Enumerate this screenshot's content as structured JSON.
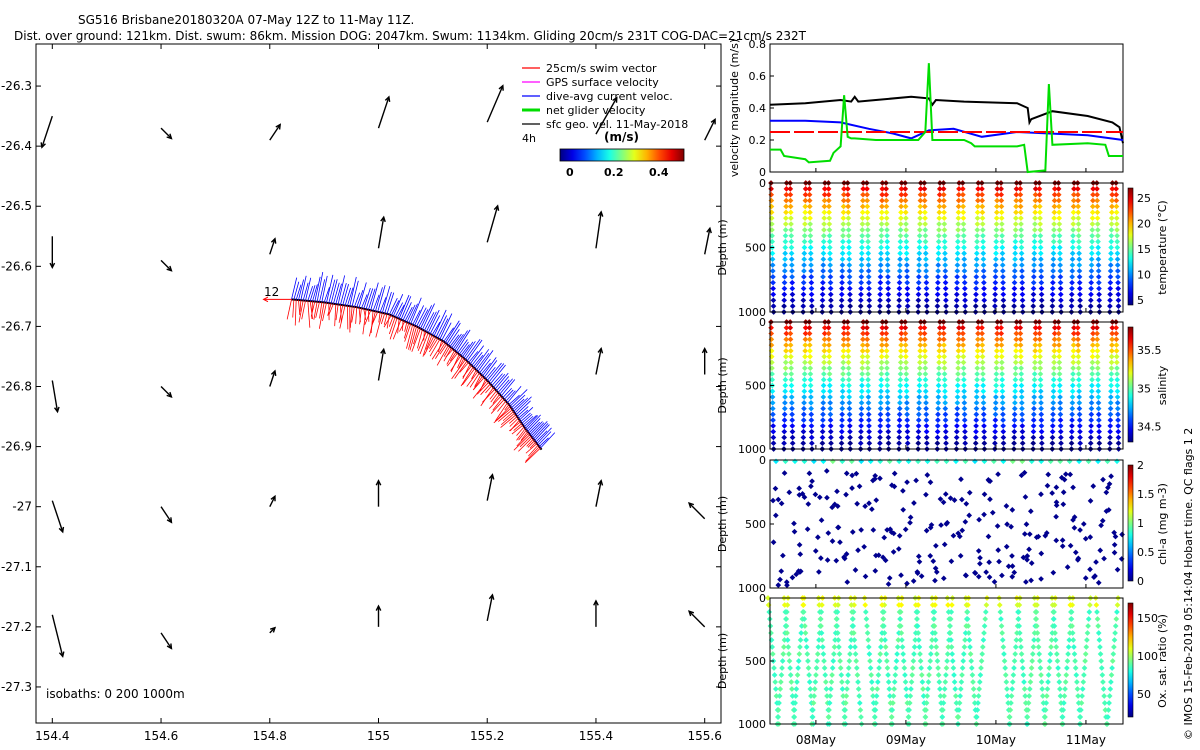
{
  "header": {
    "line1": "SG516 Brisbane20180320A 07-May 12Z to 11-May 11Z.",
    "line2": "Dist. over ground: 121km. Dist. swum: 86km. Mission DOG: 2047km. Swum: 1134km. Gliding 20cm/s 231T COG-DAC=21cm/s 232T"
  },
  "copyright": "© IMOS 15-Feb-2019 05:14:04 Hobart time. QC flags 1  2",
  "chart_data": [
    {
      "type": "scatter",
      "name": "map",
      "xlim": [
        154.37,
        155.63
      ],
      "ylim": [
        -27.36,
        -26.23
      ],
      "xticks": [
        "154.4",
        "154.6",
        "154.8",
        "155",
        "155.2",
        "155.4",
        "155.6"
      ],
      "yticks": [
        "-26.3",
        "-26.4",
        "-26.5",
        "-26.6",
        "-26.7",
        "-26.8",
        "-26.9",
        "-27",
        "-27.1",
        "-27.2",
        "-27.3"
      ],
      "legend": [
        "25cm/s swim vector",
        "GPS surface velocity",
        "dive-avg current veloc.",
        "net glider velocity",
        "sfc geo. vel. 11-May-2018"
      ],
      "legend_extra": "4h",
      "colorbar_title": "(m/s)",
      "colorbar_ticks": [
        "0",
        "0.2",
        "0.4"
      ],
      "isobaths": "isobaths: 0   200  1000m",
      "track_label": "12",
      "track": [
        [
          154.84,
          -26.655
        ],
        [
          154.9,
          -26.66
        ],
        [
          154.96,
          -26.668
        ],
        [
          155.02,
          -26.68
        ],
        [
          155.07,
          -26.7
        ],
        [
          155.12,
          -26.725
        ],
        [
          155.16,
          -26.755
        ],
        [
          155.2,
          -26.79
        ],
        [
          155.24,
          -26.83
        ],
        [
          155.27,
          -26.87
        ],
        [
          155.3,
          -26.905
        ]
      ],
      "geo_vectors": [
        [
          154.4,
          -26.35,
          -0.02,
          -0.06
        ],
        [
          154.6,
          -26.37,
          0.02,
          -0.02
        ],
        [
          154.8,
          -26.39,
          0.02,
          0.03
        ],
        [
          155.0,
          -26.37,
          0.02,
          0.06
        ],
        [
          155.2,
          -26.36,
          0.03,
          0.07
        ],
        [
          155.4,
          -26.38,
          0.04,
          0.07
        ],
        [
          155.6,
          -26.39,
          0.02,
          0.04
        ],
        [
          154.4,
          -26.55,
          0.0,
          -0.06
        ],
        [
          154.6,
          -26.59,
          0.02,
          -0.02
        ],
        [
          154.8,
          -26.58,
          0.01,
          0.03
        ],
        [
          155.0,
          -26.57,
          0.01,
          0.06
        ],
        [
          155.2,
          -26.56,
          0.02,
          0.07
        ],
        [
          155.4,
          -26.57,
          0.01,
          0.07
        ],
        [
          155.6,
          -26.58,
          0.01,
          0.05
        ],
        [
          154.4,
          -26.79,
          0.01,
          -0.06
        ],
        [
          154.6,
          -26.8,
          0.02,
          -0.02
        ],
        [
          154.8,
          -26.8,
          0.01,
          0.03
        ],
        [
          155.0,
          -26.79,
          0.01,
          0.06
        ],
        [
          155.4,
          -26.78,
          0.01,
          0.05
        ],
        [
          155.6,
          -26.78,
          0.0,
          0.05
        ],
        [
          154.4,
          -26.99,
          0.02,
          -0.06
        ],
        [
          154.6,
          -27.0,
          0.02,
          -0.03
        ],
        [
          154.8,
          -27.0,
          0.01,
          0.02
        ],
        [
          155.0,
          -27.0,
          0.0,
          0.05
        ],
        [
          155.2,
          -26.99,
          0.01,
          0.05
        ],
        [
          155.4,
          -27.0,
          0.01,
          0.05
        ],
        [
          155.6,
          -27.02,
          -0.03,
          0.03
        ],
        [
          154.4,
          -27.18,
          0.02,
          -0.08
        ],
        [
          154.6,
          -27.21,
          0.02,
          -0.03
        ],
        [
          154.8,
          -27.21,
          0.01,
          0.01
        ],
        [
          155.0,
          -27.2,
          0.0,
          0.04
        ],
        [
          155.2,
          -27.19,
          0.01,
          0.05
        ],
        [
          155.4,
          -27.2,
          0.0,
          0.05
        ],
        [
          155.6,
          -27.2,
          -0.03,
          0.03
        ]
      ]
    },
    {
      "type": "line",
      "name": "velocity",
      "ylabel": "velocity magnitude (m/s)",
      "ylim": [
        0,
        0.8
      ],
      "yticks": [
        "0",
        "0.2",
        "0.4",
        "0.6",
        "0.8"
      ],
      "x_range": [
        0,
        1
      ],
      "series": [
        {
          "name": "sfc velocity",
          "color": "#000000",
          "x": [
            0,
            0.1,
            0.2,
            0.23,
            0.24,
            0.25,
            0.3,
            0.4,
            0.45,
            0.46,
            0.47,
            0.55,
            0.7,
            0.73,
            0.735,
            0.74,
            0.8,
            0.9,
            0.97,
            0.99,
            1.0
          ],
          "y": [
            0.42,
            0.43,
            0.45,
            0.44,
            0.47,
            0.44,
            0.45,
            0.47,
            0.46,
            0.42,
            0.45,
            0.44,
            0.43,
            0.4,
            0.31,
            0.33,
            0.38,
            0.35,
            0.31,
            0.28,
            0.18
          ]
        },
        {
          "name": "dive-avg current",
          "color": "#0000ff",
          "x": [
            0,
            0.1,
            0.2,
            0.28,
            0.35,
            0.4,
            0.45,
            0.52,
            0.6,
            0.7,
            0.8,
            0.9,
            1.0
          ],
          "y": [
            0.32,
            0.32,
            0.31,
            0.27,
            0.24,
            0.21,
            0.26,
            0.27,
            0.22,
            0.25,
            0.24,
            0.23,
            0.2
          ]
        },
        {
          "name": "swim vector 25cm/s",
          "color": "#ff0000",
          "x": [
            0,
            1
          ],
          "y": [
            0.25,
            0.25
          ]
        },
        {
          "name": "net glider velocity",
          "color": "#00dd00",
          "x": [
            0,
            0.03,
            0.04,
            0.1,
            0.11,
            0.17,
            0.18,
            0.2,
            0.21,
            0.22,
            0.23,
            0.24,
            0.3,
            0.35,
            0.42,
            0.44,
            0.45,
            0.46,
            0.55,
            0.57,
            0.58,
            0.7,
            0.72,
            0.73,
            0.78,
            0.79,
            0.8,
            0.9,
            0.95,
            0.96,
            1.0
          ],
          "y": [
            0.14,
            0.14,
            0.1,
            0.08,
            0.06,
            0.07,
            0.12,
            0.16,
            0.48,
            0.22,
            0.21,
            0.21,
            0.2,
            0.2,
            0.2,
            0.25,
            0.68,
            0.2,
            0.2,
            0.18,
            0.16,
            0.16,
            0.17,
            0.0,
            0.01,
            0.55,
            0.17,
            0.18,
            0.17,
            0.1,
            0.1
          ]
        }
      ]
    },
    {
      "type": "heatmap",
      "name": "temperature",
      "ylabel": "Depth (m)",
      "clabel": "temperature (°C)",
      "ylim": [
        1000,
        0
      ],
      "yticks": [
        "0",
        "500",
        "1000"
      ],
      "cticks": [
        "25",
        "20",
        "15",
        "10",
        "5"
      ],
      "clim": [
        4,
        27
      ],
      "pattern": "profiles"
    },
    {
      "type": "heatmap",
      "name": "salinity",
      "ylabel": "Depth (m)",
      "clabel": "salinity",
      "ylim": [
        1000,
        0
      ],
      "yticks": [
        "0",
        "500",
        "1000"
      ],
      "cticks": [
        "35.5",
        "35",
        "34.5"
      ],
      "clim": [
        34.3,
        35.8
      ],
      "pattern": "profiles"
    },
    {
      "type": "heatmap",
      "name": "chl-a",
      "ylabel": "Depth (m)",
      "clabel": "chl-a (mg m-3)",
      "ylim": [
        1000,
        0
      ],
      "yticks": [
        "0",
        "500",
        "1000"
      ],
      "cticks": [
        "2",
        "1.5",
        "1",
        "0.5",
        "0"
      ],
      "clim": [
        0,
        2
      ],
      "pattern": "scatter"
    },
    {
      "type": "heatmap",
      "name": "oxygen",
      "ylabel": "Depth (m)",
      "clabel": "Ox. sat. ratio (%)",
      "ylim": [
        1000,
        0
      ],
      "yticks": [
        "0",
        "500",
        "1000"
      ],
      "cticks": [
        "150",
        "100",
        "50"
      ],
      "clim": [
        20,
        170
      ],
      "pattern": "sparse",
      "xticks": [
        "08May",
        "09May",
        "10May",
        "11May"
      ]
    }
  ]
}
